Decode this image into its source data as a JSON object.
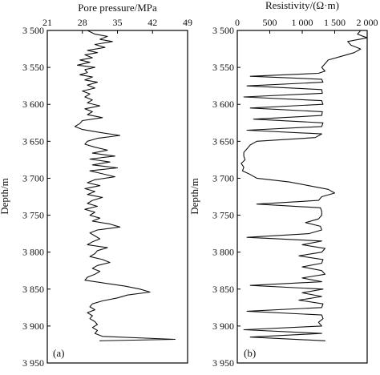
{
  "chart_data": [
    {
      "type": "line",
      "panel_label": "(a)",
      "xlabel": "Pore pressure/MPa",
      "ylabel": "Depth/m",
      "xlim": [
        21,
        49
      ],
      "ylim": [
        3500,
        3950
      ],
      "x_ticks": [
        21,
        28,
        35,
        42,
        49
      ],
      "x_tick_labels": [
        "21",
        "28",
        "35",
        "42",
        "49"
      ],
      "y_ticks": [
        3500,
        3550,
        3600,
        3650,
        3700,
        3750,
        3800,
        3850,
        3900,
        3950
      ],
      "y_tick_labels": [
        "3 500",
        "3 550",
        "3 600",
        "3 650",
        "3 700",
        "3 750",
        "3 800",
        "3 850",
        "3 900",
        "3 950"
      ],
      "legend": "none",
      "grid": false,
      "series": [
        {
          "depth": [
            3500,
            3505,
            3508,
            3512,
            3515,
            3519,
            3523,
            3527,
            3530,
            3533,
            3537,
            3540,
            3543,
            3547,
            3550,
            3553,
            3557,
            3560,
            3563,
            3567,
            3570,
            3574,
            3578,
            3582,
            3586,
            3590,
            3594,
            3598,
            3602,
            3606,
            3610,
            3614,
            3618,
            3622,
            3626,
            3630,
            3634,
            3638,
            3642,
            3646,
            3650,
            3654,
            3658,
            3662,
            3666,
            3670,
            3674,
            3678,
            3682,
            3686,
            3690,
            3694,
            3698,
            3702,
            3706,
            3710,
            3714,
            3718,
            3722,
            3726,
            3730,
            3734,
            3738,
            3742,
            3746,
            3750,
            3754,
            3758,
            3762,
            3766,
            3770,
            3774,
            3778,
            3782,
            3786,
            3790,
            3794,
            3798,
            3802,
            3806,
            3810,
            3814,
            3818,
            3822,
            3826,
            3830,
            3834,
            3838,
            3842,
            3846,
            3850,
            3854,
            3858,
            3862,
            3866,
            3870,
            3874,
            3878,
            3882,
            3886,
            3890,
            3894,
            3898,
            3902,
            3906,
            3910,
            3914,
            3918,
            3920
          ],
          "values": [
            29.0,
            30.5,
            33.0,
            31.5,
            34.0,
            30.5,
            32.5,
            29.0,
            31.0,
            28.5,
            30.0,
            27.5,
            29.5,
            27.0,
            30.5,
            28.5,
            29.0,
            27.5,
            30.0,
            28.5,
            31.0,
            29.0,
            30.5,
            28.0,
            29.5,
            28.5,
            30.0,
            29.0,
            31.5,
            28.5,
            30.0,
            29.0,
            32.0,
            28.0,
            27.5,
            26.5,
            28.0,
            31.5,
            35.5,
            31.0,
            29.0,
            28.5,
            30.5,
            33.0,
            30.0,
            34.5,
            29.5,
            33.5,
            30.0,
            35.0,
            29.5,
            32.0,
            34.5,
            30.5,
            29.0,
            31.5,
            28.5,
            30.5,
            29.0,
            32.0,
            30.0,
            29.0,
            31.0,
            28.5,
            30.5,
            29.5,
            31.5,
            30.0,
            33.5,
            35.5,
            31.0,
            29.5,
            30.5,
            31.5,
            30.0,
            29.0,
            33.0,
            31.0,
            30.5,
            29.5,
            32.0,
            33.5,
            31.0,
            30.0,
            31.5,
            30.5,
            29.0,
            28.5,
            32.5,
            36.5,
            39.5,
            41.5,
            37.0,
            35.0,
            32.0,
            30.0,
            29.5,
            30.5,
            29.0,
            30.0,
            29.5,
            30.5,
            31.0,
            30.0,
            31.0,
            30.5,
            32.0,
            46.5,
            31.5
          ]
        }
      ]
    },
    {
      "type": "line",
      "panel_label": "(b)",
      "xlabel": "Resistivity/(Ω·m)",
      "ylabel": "Depth/m",
      "xlim": [
        0,
        2000
      ],
      "ylim": [
        3500,
        3950
      ],
      "x_ticks": [
        0,
        500,
        1000,
        1500,
        2000
      ],
      "x_tick_labels": [
        "0",
        "500",
        "1 000",
        "1 500",
        "2 000"
      ],
      "y_ticks": [
        3500,
        3550,
        3600,
        3650,
        3700,
        3750,
        3800,
        3850,
        3900,
        3950
      ],
      "y_tick_labels": [
        "3 500",
        "3 550",
        "3 600",
        "3 650",
        "3 700",
        "3 750",
        "3 800",
        "3 850",
        "3 900",
        "3 950"
      ],
      "legend": "none",
      "grid": false,
      "series": [
        {
          "depth": [
            3500,
            3505,
            3510,
            3515,
            3520,
            3525,
            3530,
            3535,
            3540,
            3545,
            3550,
            3555,
            3558,
            3562,
            3566,
            3570,
            3575,
            3580,
            3585,
            3590,
            3595,
            3600,
            3605,
            3610,
            3615,
            3620,
            3625,
            3630,
            3635,
            3640,
            3645,
            3650,
            3655,
            3660,
            3665,
            3670,
            3675,
            3680,
            3685,
            3690,
            3695,
            3700,
            3705,
            3710,
            3715,
            3720,
            3725,
            3730,
            3735,
            3740,
            3745,
            3750,
            3755,
            3760,
            3765,
            3770,
            3775,
            3780,
            3785,
            3790,
            3795,
            3800,
            3805,
            3810,
            3815,
            3820,
            3825,
            3830,
            3835,
            3840,
            3845,
            3850,
            3855,
            3860,
            3865,
            3870,
            3875,
            3880,
            3885,
            3890,
            3895,
            3900,
            3905,
            3910,
            3915,
            3920
          ],
          "values": [
            1900,
            1850,
            2000,
            1700,
            1750,
            1900,
            1800,
            1600,
            1400,
            1350,
            1300,
            1350,
            1250,
            200,
            1300,
            1320,
            150,
            1300,
            1310,
            100,
            1300,
            1320,
            200,
            1310,
            1300,
            250,
            1320,
            1300,
            150,
            1300,
            1200,
            300,
            200,
            150,
            100,
            100,
            120,
            60,
            100,
            80,
            200,
            300,
            800,
            1100,
            1400,
            1500,
            1300,
            1250,
            300,
            1280,
            1300,
            1300,
            1250,
            1050,
            1280,
            1300,
            1100,
            150,
            1300,
            1000,
            1350,
            1300,
            950,
            1320,
            1300,
            1000,
            1300,
            1350,
            1000,
            1300,
            200,
            1320,
            1000,
            1300,
            950,
            1320,
            1300,
            150,
            1300,
            1320,
            1250,
            1300,
            100,
            1300,
            200,
            1350
          ]
        }
      ]
    }
  ]
}
